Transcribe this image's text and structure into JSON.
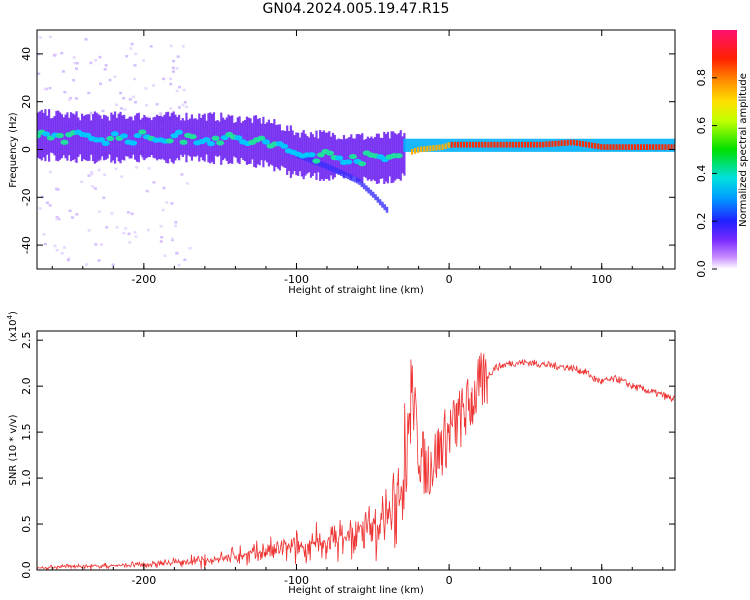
{
  "title": "GN04.2024.005.19.47.R15",
  "chart_data": [
    {
      "type": "heatmap",
      "xlabel": "Height of straight line (km)",
      "ylabel": "Frequency (Hz)",
      "xlim": [
        -270,
        148
      ],
      "ylim": [
        -50,
        50
      ],
      "x_ticks": [
        "-200",
        "-100",
        "0",
        "100"
      ],
      "y_ticks": [
        "-40",
        "-20",
        "0",
        "20",
        "40"
      ],
      "colorbar": {
        "label": "Normalized spectral amplitude",
        "range": [
          0,
          1
        ],
        "ticks": [
          "0.0",
          "0.2",
          "0.4",
          "0.6",
          "0.8"
        ]
      },
      "ridge": [
        {
          "x": -265,
          "f": 6
        },
        {
          "x": -240,
          "f": 5
        },
        {
          "x": -200,
          "f": 5
        },
        {
          "x": -160,
          "f": 5
        },
        {
          "x": -120,
          "f": 3
        },
        {
          "x": -100,
          "f": -2
        },
        {
          "x": -70,
          "f": -3
        },
        {
          "x": -50,
          "f": -4
        },
        {
          "x": -35,
          "f": -3
        },
        {
          "x": -20,
          "f": 0
        },
        {
          "x": -5,
          "f": 1
        },
        {
          "x": 0,
          "f": 2
        },
        {
          "x": 60,
          "f": 2
        },
        {
          "x": 80,
          "f": 3
        },
        {
          "x": 100,
          "f": 1
        },
        {
          "x": 148,
          "f": 1
        }
      ],
      "branch": [
        {
          "x": -100,
          "f": -3
        },
        {
          "x": -80,
          "f": -8
        },
        {
          "x": -60,
          "f": -14
        },
        {
          "x": -50,
          "f": -20
        },
        {
          "x": -40,
          "f": -27
        }
      ]
    },
    {
      "type": "line",
      "xlabel": "Height of straight line (km)",
      "ylabel": "SNR (10 * v/v)",
      "y_multiplier": "(x10",
      "y_multiplier_exp": "4",
      "y_multiplier_close": ")",
      "xlim": [
        -270,
        148
      ],
      "ylim": [
        0,
        2.6
      ],
      "x_ticks": [
        "-200",
        "-100",
        "0",
        "100"
      ],
      "y_ticks": [
        "0.0",
        "0.5",
        "1.0",
        "1.5",
        "2.0",
        "2.5"
      ],
      "color": "#ee3333",
      "series": [
        {
          "x": [
            -270,
            -250,
            -230,
            -200,
            -180,
            -160,
            -140,
            -120,
            -100,
            -80,
            -60,
            -45,
            -35,
            -30,
            -27,
            -25,
            -20,
            -15,
            -10,
            -5,
            0,
            5,
            10,
            15,
            20,
            25,
            30,
            40,
            50,
            60,
            70,
            80,
            90,
            95,
            100,
            110,
            120,
            130,
            140,
            148
          ],
          "values": [
            0.02,
            0.04,
            0.04,
            0.06,
            0.08,
            0.1,
            0.15,
            0.2,
            0.25,
            0.3,
            0.4,
            0.5,
            0.7,
            1.0,
            1.6,
            2.1,
            1.3,
            1.1,
            1.2,
            1.35,
            1.5,
            1.6,
            1.7,
            1.85,
            2.0,
            2.1,
            2.2,
            2.25,
            2.26,
            2.24,
            2.22,
            2.2,
            2.15,
            2.08,
            2.05,
            2.08,
            2.0,
            1.95,
            1.9,
            1.85
          ]
        }
      ]
    }
  ]
}
